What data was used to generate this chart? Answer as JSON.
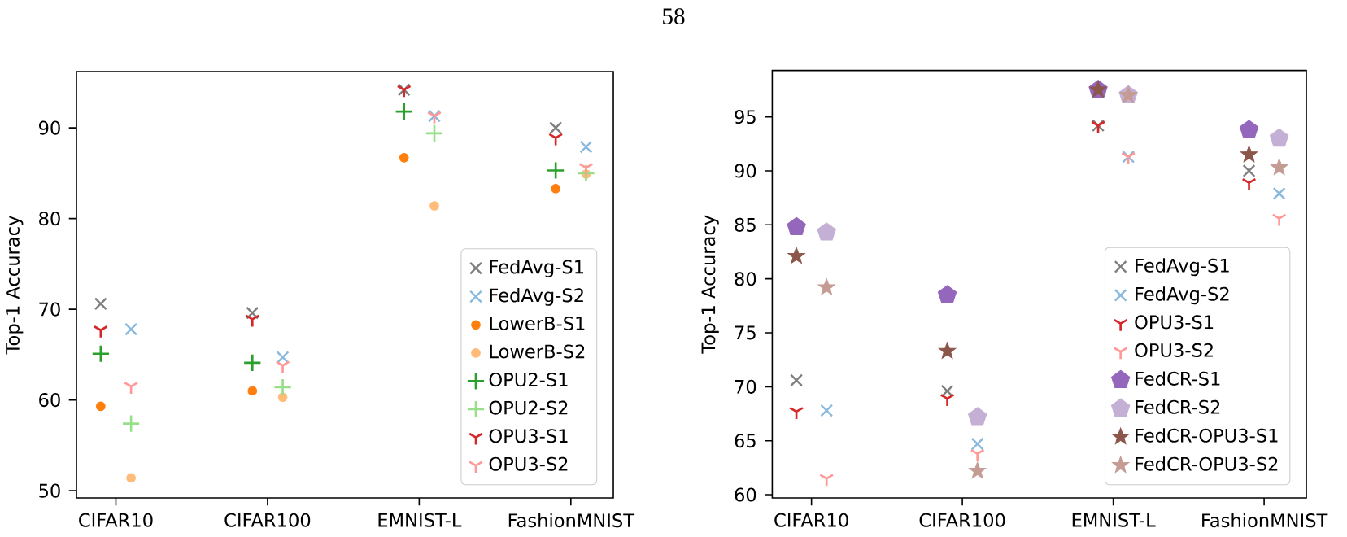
{
  "chart_data": [
    {
      "type": "scatter",
      "ylabel": "Top-1 Accuracy",
      "annotations": [
        "58"
      ],
      "categories": [
        "CIFAR10",
        "CIFAR100",
        "EMNIST-L",
        "FashionMNIST"
      ],
      "ylim": [
        49.2,
        96.2
      ],
      "yticks": [
        50,
        60,
        70,
        80,
        90
      ],
      "legend": "bottom right",
      "series": [
        {
          "name": "FedAvg-S1",
          "color": "#7f7f7f",
          "marker": "cross",
          "values": [
            70.6,
            69.6,
            94.2,
            90.0
          ]
        },
        {
          "name": "FedAvg-S2",
          "color": "#89b9dc",
          "marker": "cross",
          "values": [
            67.8,
            64.7,
            91.3,
            87.9
          ]
        },
        {
          "name": "LowerB-S1",
          "color": "#ff7f0e",
          "marker": "circle",
          "values": [
            59.3,
            61.0,
            86.7,
            83.3
          ]
        },
        {
          "name": "LowerB-S2",
          "color": "#ffbb78",
          "marker": "circle",
          "values": [
            51.4,
            60.3,
            81.4,
            84.9
          ]
        },
        {
          "name": "OPU2-S1",
          "color": "#2ca02c",
          "marker": "plus",
          "values": [
            65.1,
            64.1,
            91.8,
            85.3
          ]
        },
        {
          "name": "OPU2-S2",
          "color": "#98df8a",
          "marker": "plus",
          "values": [
            57.4,
            61.4,
            89.4,
            85.0
          ]
        },
        {
          "name": "OPU3-S1",
          "color": "#d62728",
          "values": [
            67.7,
            68.9,
            94.2,
            88.9
          ]
        },
        {
          "name": "OPU3-S2",
          "color": "#ff9896",
          "values": [
            61.5,
            63.8,
            91.3,
            85.6
          ]
        }
      ]
    },
    {
      "type": "scatter",
      "ylabel": "Top-1 Accuracy",
      "categories": [
        "CIFAR10",
        "CIFAR100",
        "EMNIST-L",
        "FashionMNIST"
      ],
      "ylim": [
        59.7,
        99.3
      ],
      "yticks": [
        60,
        65,
        70,
        75,
        80,
        85,
        90,
        95
      ],
      "legend": "bottom right",
      "series": [
        {
          "name": "FedAvg-S1",
          "color": "#7f7f7f",
          "marker": "cross",
          "values": [
            70.6,
            69.6,
            94.2,
            90.0
          ]
        },
        {
          "name": "FedAvg-S2",
          "color": "#89b9dc",
          "marker": "cross",
          "values": [
            67.8,
            64.7,
            91.3,
            87.9
          ]
        },
        {
          "name": "OPU3-S1",
          "color": "#d62728",
          "values": [
            67.7,
            68.9,
            94.2,
            88.9
          ]
        },
        {
          "name": "OPU3-S2",
          "color": "#ff9896",
          "values": [
            61.5,
            63.8,
            91.3,
            85.6
          ]
        },
        {
          "name": "FedCR-S1",
          "color": "#9467bd",
          "values": [
            84.8,
            78.5,
            97.5,
            93.8
          ]
        },
        {
          "name": "FedCR-S2",
          "color": "#c5b0d5",
          "values": [
            84.3,
            67.2,
            97.0,
            93.0
          ]
        },
        {
          "name": "FedCR-OPU3-S1",
          "color": "#8c564b",
          "marker": "star",
          "values": [
            82.1,
            73.3,
            97.5,
            91.5
          ]
        },
        {
          "name": "FedCR-OPU3-S2",
          "color": "#c49c94",
          "marker": "star",
          "values": [
            79.2,
            62.2,
            97.0,
            90.3
          ]
        }
      ]
    }
  ]
}
